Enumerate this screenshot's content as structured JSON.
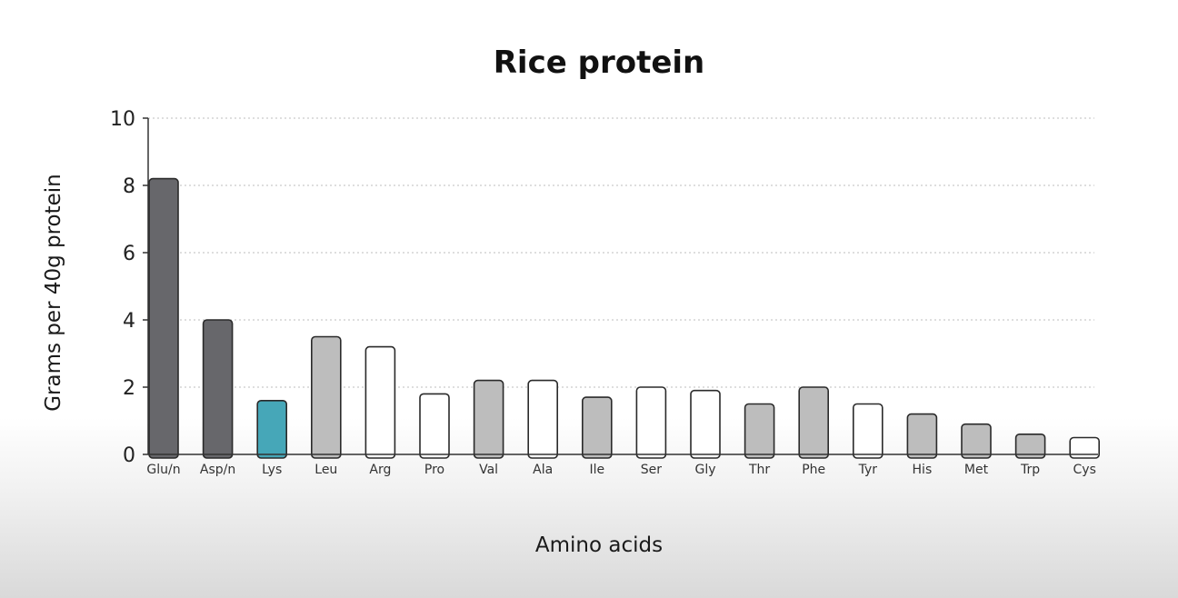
{
  "chart_data": {
    "type": "bar",
    "title": "Rice protein",
    "xlabel": "Amino acids",
    "ylabel": "Grams per 40g protein",
    "ylim": [
      0,
      10
    ],
    "yticks": [
      "0",
      "2",
      "4",
      "6",
      "8",
      "10"
    ],
    "grid": true,
    "categories": [
      "Glu/n",
      "Asp/n",
      "Lys",
      "Leu",
      "Arg",
      "Pro",
      "Val",
      "Ala",
      "Ile",
      "Ser",
      "Gly",
      "Thr",
      "Phe",
      "Tyr",
      "His",
      "Met",
      "Trp",
      "Cys"
    ],
    "values": [
      8.2,
      4.0,
      1.6,
      3.5,
      3.2,
      1.8,
      2.2,
      2.2,
      1.7,
      2.0,
      1.9,
      1.5,
      2.0,
      1.5,
      1.2,
      0.9,
      0.6,
      0.5
    ],
    "bar_colors": [
      "#67676b",
      "#67676b",
      "#46a7b8",
      "#bdbdbd",
      "#ffffff",
      "#ffffff",
      "#bdbdbd",
      "#ffffff",
      "#bdbdbd",
      "#ffffff",
      "#ffffff",
      "#bdbdbd",
      "#bdbdbd",
      "#ffffff",
      "#bdbdbd",
      "#bdbdbd",
      "#bdbdbd",
      "#ffffff"
    ]
  }
}
